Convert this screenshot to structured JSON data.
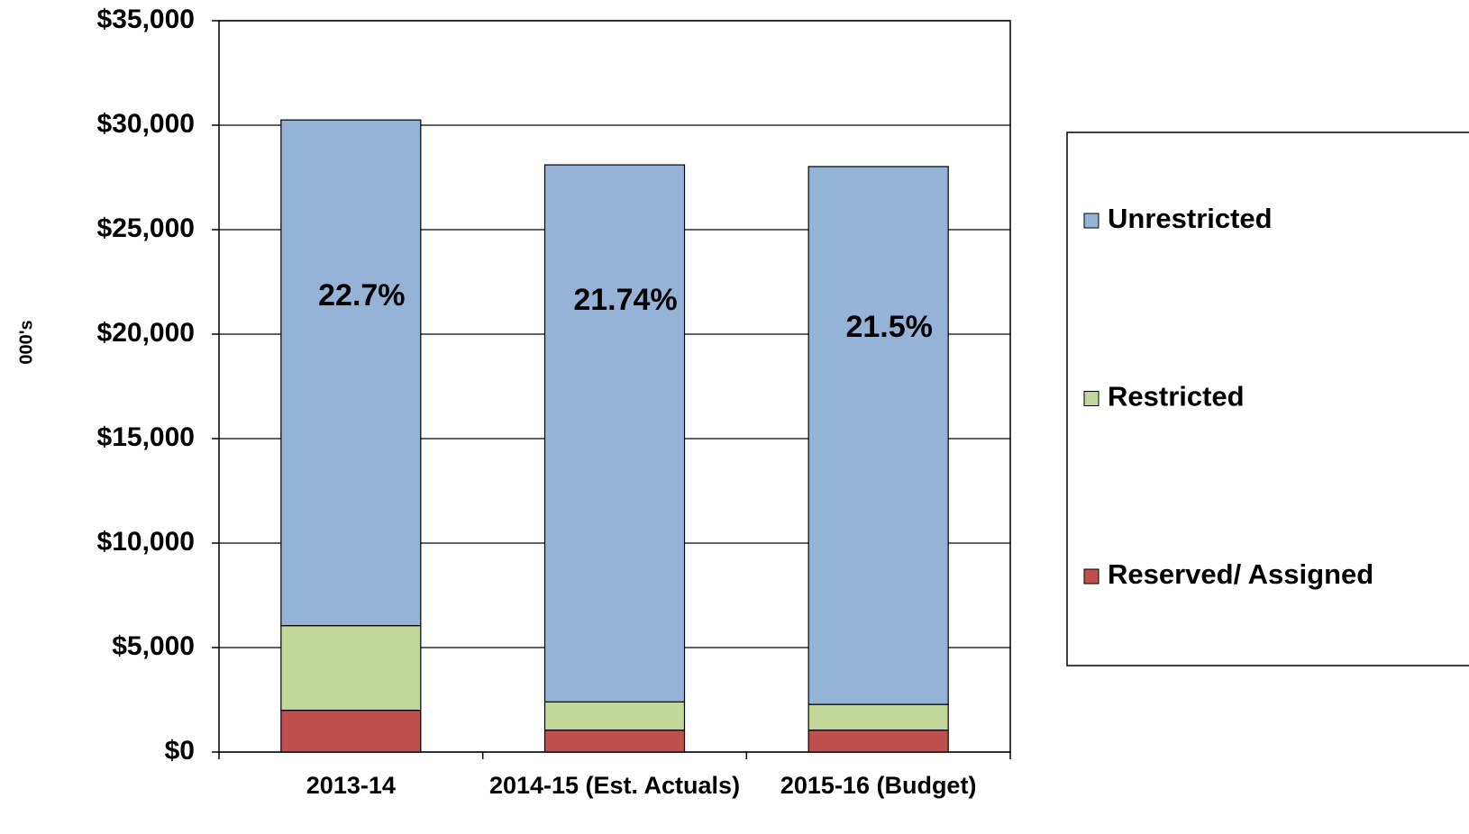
{
  "chart_data": {
    "type": "stacked_bar",
    "y_label": "000's",
    "categories": [
      "2013-14",
      "2014-15 (Est. Actuals)",
      "2015-16 (Budget)"
    ],
    "series": [
      {
        "name": "Reserved/ Assigned",
        "color": "#c0504d",
        "values": [
          2000,
          1050,
          1050
        ]
      },
      {
        "name": "Restricted",
        "color": "#c4d79b",
        "values": [
          4050,
          1350,
          1230
        ]
      },
      {
        "name": "Unrestricted",
        "color": "#95b3d7",
        "values": [
          24200,
          25700,
          25740
        ]
      }
    ],
    "annotations": [
      "22.7%",
      "21.74%",
      "21.5%"
    ],
    "ylim": [
      0,
      35000
    ],
    "yticks": [
      {
        "value": 0,
        "label": "$0"
      },
      {
        "value": 5000,
        "label": "$5,000"
      },
      {
        "value": 10000,
        "label": "$10,000"
      },
      {
        "value": 15000,
        "label": "$15,000"
      },
      {
        "value": 20000,
        "label": "$20,000"
      },
      {
        "value": 25000,
        "label": "$25,000"
      },
      {
        "value": 30000,
        "label": "$30,000"
      },
      {
        "value": 35000,
        "label": "$35,000"
      }
    ],
    "grid": true,
    "legend": "right"
  }
}
